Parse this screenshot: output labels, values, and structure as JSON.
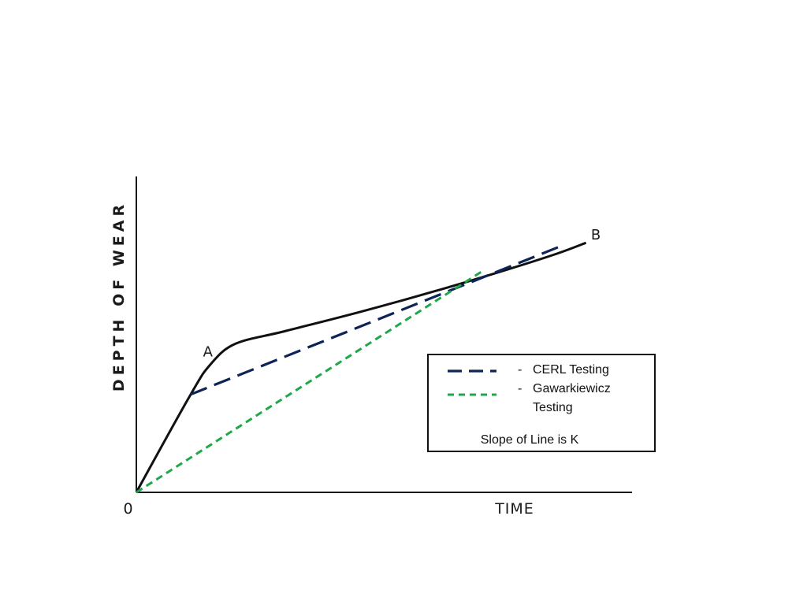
{
  "chart_data": {
    "type": "line",
    "xlabel": "TIME",
    "ylabel": "DEPTH OF WEAR",
    "origin_label": "0",
    "xlim": [
      0,
      10
    ],
    "ylim": [
      0,
      10
    ],
    "grid": false,
    "point_labels": [
      {
        "text": "A",
        "x": 1.35,
        "y": 4.3
      },
      {
        "text": "B",
        "x": 9.2,
        "y": 8.0
      }
    ],
    "series": [
      {
        "style": "solid",
        "color": "#111111",
        "x": [
          0,
          1.1,
          1.5,
          2.0,
          3.0,
          4.5,
          6.0,
          7.5,
          8.5,
          9.1
        ],
        "y": [
          0,
          3.1,
          4.05,
          4.7,
          5.1,
          5.7,
          6.35,
          7.05,
          7.55,
          7.9
        ]
      },
      {
        "style": "long-dash",
        "color": "#0d2456",
        "x": [
          1.1,
          8.6
        ],
        "y": [
          3.1,
          7.8
        ]
      },
      {
        "style": "short-dash",
        "color": "#1fa84a",
        "x": [
          0,
          7.0
        ],
        "y": [
          0,
          7.0
        ]
      }
    ],
    "legend": {
      "placement": "lower-right",
      "entries": [
        {
          "marker": "-",
          "label": "CERL Testing",
          "label_line2": "",
          "color": "#0d2456",
          "style": "long-dash"
        },
        {
          "marker": "-",
          "label": "Gawarkiewicz",
          "label_line2": "Testing",
          "color": "#1fa84a",
          "style": "short-dash"
        }
      ],
      "note": "Slope of Line is K"
    }
  }
}
